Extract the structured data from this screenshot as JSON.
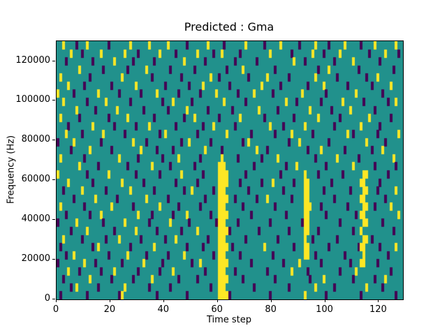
{
  "chart_data": {
    "type": "heatmap",
    "title": "Predicted : Gma",
    "xlabel": "Time step",
    "ylabel": "Frequency (Hz)",
    "xlim": [
      0,
      129
    ],
    "ylim": [
      0,
      130000
    ],
    "xticks": [
      0,
      20,
      40,
      60,
      80,
      100,
      120
    ],
    "yticks": [
      0,
      20000,
      40000,
      60000,
      80000,
      100000,
      120000
    ],
    "legend_position": "none",
    "grid_lines": false,
    "colors": {
      "low": "#440154",
      "mid": "#21918c",
      "high": "#fde725"
    },
    "grid": {
      "cols": 129,
      "rows": 32,
      "row_order": "top-to-bottom"
    },
    "cells": {
      "rows": [
        {
          "dark": [
            7,
            19,
            48,
            62,
            77,
            90,
            101,
            113
          ],
          "yellow": [
            2,
            11,
            27,
            34,
            41,
            56,
            70,
            83,
            96,
            107,
            118,
            126
          ]
        },
        {
          "dark": [
            9,
            30,
            44,
            58,
            68,
            87,
            99,
            116,
            127
          ],
          "yellow": [
            5,
            16,
            25,
            38,
            52,
            61,
            79,
            95,
            105,
            122
          ]
        },
        {
          "dark": [
            3,
            13,
            28,
            36,
            55,
            66,
            74,
            92,
            103,
            120
          ],
          "yellow": [
            21,
            47,
            88,
            110
          ]
        },
        {
          "dark": [
            17,
            26,
            42,
            51,
            63,
            81,
            97,
            112,
            125
          ],
          "yellow": [
            8,
            33,
            69,
            101
          ]
        },
        {
          "dark": [
            12,
            35,
            46,
            60,
            71,
            86,
            104,
            115
          ],
          "yellow": [
            1,
            24,
            57,
            78,
            96,
            119
          ]
        },
        {
          "dark": [
            10,
            20,
            40,
            49,
            64,
            83,
            93,
            108,
            117
          ],
          "yellow": [
            4,
            29,
            54,
            76,
            99,
            124
          ]
        },
        {
          "dark": [
            6,
            23,
            31,
            45,
            53,
            67,
            80,
            100,
            121
          ],
          "yellow": [
            0,
            15,
            37,
            59,
            73,
            91,
            111
          ]
        },
        {
          "dark": [
            11,
            27,
            39,
            50,
            70,
            89,
            98,
            114,
            123
          ],
          "yellow": [
            2,
            18,
            43,
            62,
            85,
            106,
            126
          ]
        },
        {
          "dark": [
            14,
            32,
            41,
            56,
            65,
            82,
            102,
            118
          ],
          "yellow": [
            7,
            22,
            48,
            75,
            94,
            109
          ]
        },
        {
          "dark": [
            8,
            19,
            36,
            47,
            60,
            77,
            88,
            105,
            124
          ],
          "yellow": [
            1,
            26,
            51,
            68,
            97,
            116
          ]
        },
        {
          "dark": [
            4,
            21,
            29,
            44,
            54,
            66,
            84,
            103,
            120
          ],
          "yellow": [
            13,
            34,
            58,
            79,
            92,
            113
          ]
        },
        {
          "dark": [
            9,
            25,
            38,
            52,
            72,
            81,
            95,
            110,
            119
          ],
          "yellow": [
            3,
            17,
            40,
            63,
            87,
            108,
            127
          ]
        },
        {
          "dark": [
            0,
            16,
            33,
            46,
            57,
            69,
            86,
            101,
            122
          ],
          "yellow": [
            6,
            28,
            49,
            71,
            90,
            115
          ]
        },
        {
          "dark": [
            5,
            20,
            37,
            43,
            61,
            78,
            93,
            107,
            117
          ],
          "yellow": [
            12,
            31,
            55,
            74,
            98,
            121
          ]
        },
        {
          "dark": [
            10,
            30,
            39,
            53,
            67,
            76,
            96,
            112
          ],
          "yellow": [
            1,
            23,
            45,
            61,
            82,
            104,
            125
          ]
        },
        {
          "dark": [
            15,
            26,
            42,
            51,
            73,
            85,
            100,
            118,
            126
          ],
          "yellow": [
            8,
            35,
            60,
            61,
            62,
            89,
            110
          ]
        },
        {
          "dark": [
            11,
            29,
            38,
            54,
            70,
            83,
            97,
            106,
            123
          ],
          "yellow": [
            0,
            19,
            46,
            60,
            61,
            62,
            63,
            92,
            114,
            115
          ]
        },
        {
          "dark": [
            13,
            32,
            44,
            52,
            68,
            76,
            88,
            102,
            120
          ],
          "yellow": [
            4,
            24,
            60,
            61,
            62,
            63,
            80,
            92,
            93,
            113,
            114
          ]
        },
        {
          "dark": [
            2,
            18,
            36,
            47,
            58,
            71,
            84,
            99,
            109,
            119
          ],
          "yellow": [
            9,
            27,
            50,
            60,
            61,
            62,
            92,
            93,
            114,
            115,
            126
          ]
        },
        {
          "dark": [
            6,
            22,
            41,
            55,
            66,
            74,
            87,
            103,
            122
          ],
          "yellow": [
            14,
            33,
            60,
            61,
            62,
            63,
            78,
            92,
            93,
            113,
            114
          ]
        },
        {
          "dark": [
            10,
            28,
            45,
            53,
            69,
            81,
            98,
            108,
            118
          ],
          "yellow": [
            1,
            20,
            38,
            60,
            61,
            62,
            92,
            93,
            94,
            114,
            115,
            124
          ]
        },
        {
          "dark": [
            3,
            12,
            35,
            43,
            57,
            72,
            85,
            100,
            111
          ],
          "yellow": [
            16,
            30,
            48,
            60,
            61,
            62,
            63,
            92,
            93,
            113,
            114,
            127
          ]
        },
        {
          "dark": [
            0,
            17,
            34,
            49,
            59,
            67,
            79,
            91,
            105,
            121
          ],
          "yellow": [
            7,
            25,
            42,
            60,
            61,
            62,
            92,
            93,
            114,
            115
          ]
        },
        {
          "dark": [
            5,
            21,
            37,
            46,
            64,
            75,
            86,
            97,
            110,
            125
          ],
          "yellow": [
            11,
            29,
            52,
            60,
            61,
            62,
            63,
            92,
            93,
            113
          ]
        },
        {
          "dark": [
            9,
            18,
            31,
            40,
            56,
            70,
            82,
            95,
            104,
            117
          ],
          "yellow": [
            2,
            23,
            44,
            60,
            61,
            62,
            92,
            114,
            115
          ]
        },
        {
          "dark": [
            1,
            13,
            27,
            48,
            54,
            65,
            88,
            101,
            112,
            120
          ],
          "yellow": [
            15,
            36,
            60,
            61,
            62,
            63,
            77,
            92,
            93,
            113,
            114,
            126
          ]
        },
        {
          "dark": [
            3,
            19,
            33,
            41,
            58,
            68,
            80,
            96,
            107,
            123
          ],
          "yellow": [
            6,
            26,
            47,
            60,
            61,
            62,
            92,
            93,
            114
          ]
        },
        {
          "dark": [
            0,
            14,
            24,
            39,
            50,
            72,
            84,
            98,
            109,
            119
          ],
          "yellow": [
            10,
            32,
            53,
            60,
            61,
            62,
            63,
            90,
            113,
            114
          ]
        },
        {
          "dark": [
            8,
            16,
            30,
            38,
            55,
            66,
            78,
            93,
            105,
            124
          ],
          "yellow": [
            4,
            21,
            43,
            60,
            61,
            62,
            87,
            111
          ]
        },
        {
          "dark": [
            2,
            20,
            28,
            45,
            52,
            69,
            81,
            94,
            110,
            118
          ],
          "yellow": [
            12,
            35,
            60,
            61,
            62,
            63,
            99,
            122
          ]
        },
        {
          "dark": [
            5,
            15,
            34,
            42,
            57,
            73,
            86,
            103,
            121
          ],
          "yellow": [
            7,
            25,
            60,
            61,
            62,
            96,
            115
          ]
        },
        {
          "dark": [
            1,
            11,
            23,
            37,
            48,
            64,
            79,
            100,
            113,
            126
          ],
          "yellow": [
            24,
            60,
            61,
            62,
            63,
            92
          ]
        }
      ]
    }
  }
}
